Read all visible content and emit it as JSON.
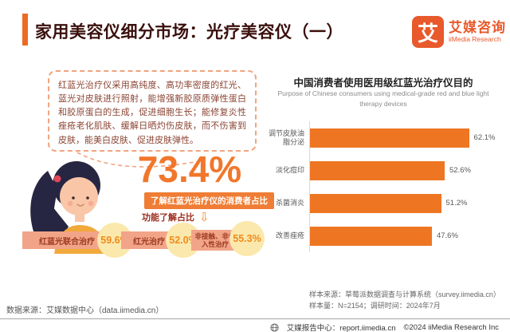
{
  "header": {
    "title": "家用美容仪细分市场：光疗美容仪（一）",
    "logo": {
      "glyph": "艾",
      "brand_cn": "艾媒咨询",
      "brand_en": "iiMedia Research"
    }
  },
  "left_panel": {
    "description": "红蓝光治疗仪采用高纯度、高功率密度的红光、蓝光对皮肤进行照射，能增强新胶原质弹性蛋白和胶原蛋白的生成，促进细胞生长；能修复炎性痤疮老化肌肤、缓解日晒灼伤皮肤，而不伤害到皮肤，能美白皮肤、促进皮肤弹性。",
    "big_stat": "73.4%",
    "stat_label": "了解红蓝光治疗仪的消费者占比",
    "sub_label": "功能了解占比",
    "chips": [
      {
        "label": "红蓝光联合治疗",
        "value": "59.6%"
      },
      {
        "label": "红光治疗",
        "value": "52.0%"
      },
      {
        "label": "非接触、非侵入性治疗",
        "value": "55.3%"
      }
    ]
  },
  "chart_data": {
    "type": "bar",
    "orientation": "horizontal",
    "title": "中国消费者使用医用级红蓝光治疗仪目的",
    "subtitle": "Purpose of Chinese consumers using medical-grade red and blue light therapy devices",
    "categories": [
      "调节皮肤油脂分泌",
      "淡化痘印",
      "杀菌消炎",
      "改善痤疮"
    ],
    "values": [
      62.1,
      52.6,
      51.2,
      47.6
    ],
    "value_labels": [
      "62.1%",
      "52.6%",
      "51.2%",
      "47.6%"
    ],
    "xlim": [
      0,
      75
    ],
    "bar_color": "#ee7623",
    "grid": false,
    "legend": "none"
  },
  "footnotes": {
    "data_source": "数据来源：艾媒数据中心（data.iimedia.cn）",
    "sample_source": "样本来源：草莓派数据调查与计算系统（survey.iimedia.cn）",
    "sample_size": "样本量：N=2154；调研时间：2024年7月",
    "report_center": "艾媒报告中心：report.iimedia.cn",
    "copyright": "©2024  iiMedia Research  Inc"
  },
  "colors": {
    "accent_orange": "#ed6a24",
    "logo_orange": "#e8592b",
    "bar_orange": "#ee7623",
    "stat_orange": "#f0772c",
    "chip_salmon": "#f2a489",
    "chip_circle_yellow": "#fbe8ac",
    "title_dark_red": "#3a0f0c",
    "body_text_red": "#8b4434"
  }
}
